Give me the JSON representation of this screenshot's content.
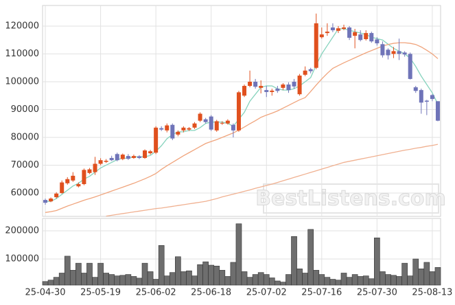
{
  "chart_data": [
    {
      "type": "candlestick",
      "watermark": "BestListens.com",
      "ylim": [
        51600,
        127400
      ],
      "yticks": [
        60000,
        70000,
        80000,
        90000,
        100000,
        110000,
        120000
      ],
      "grid": true,
      "up_color": "#e0501e",
      "down_color": "#6f74b8",
      "open": [
        57500,
        57000,
        58500,
        60000,
        63500,
        64500,
        62400,
        63200,
        67200,
        67500,
        70500,
        71200,
        72600,
        74000,
        72200,
        73300,
        72600,
        73200,
        72600,
        74300,
        74500,
        83300,
        82500,
        84500,
        81000,
        82500,
        82800,
        83500,
        86000,
        86500,
        87500,
        82500,
        85000,
        85000,
        84500,
        82500,
        95000,
        98500,
        100000,
        97800,
        97000,
        96300,
        97500,
        97800,
        99000,
        100000,
        95500,
        102500,
        104500,
        105000,
        116000,
        117500,
        119500,
        118300,
        119000,
        119500,
        116500,
        117000,
        115300,
        117500,
        115200,
        113500,
        111500,
        110000,
        111000,
        110500,
        110000,
        98000,
        97000,
        93200,
        95200,
        93000
      ],
      "high": [
        58000,
        58400,
        60300,
        64500,
        65700,
        67500,
        63800,
        68800,
        69000,
        73000,
        72500,
        72200,
        73400,
        74500,
        74200,
        74000,
        73800,
        73600,
        75700,
        75500,
        84000,
        84000,
        85000,
        85000,
        82500,
        84000,
        83700,
        85500,
        89000,
        87000,
        88000,
        86300,
        85800,
        86500,
        85000,
        96700,
        99000,
        104000,
        101000,
        100500,
        98500,
        97500,
        98500,
        99500,
        99800,
        101000,
        102800,
        105500,
        105000,
        124500,
        119500,
        121000,
        121000,
        120000,
        120500,
        120000,
        119000,
        118500,
        118500,
        118000,
        116000,
        114500,
        112000,
        112500,
        115500,
        111000,
        110500,
        98500,
        97500,
        93500,
        95500,
        93000
      ],
      "low": [
        55800,
        56700,
        58000,
        59700,
        63000,
        64000,
        62000,
        62800,
        66800,
        66500,
        70000,
        70800,
        71500,
        71400,
        71800,
        71900,
        72300,
        72200,
        72300,
        73800,
        74000,
        82300,
        81800,
        79000,
        80400,
        81800,
        82300,
        83000,
        85500,
        85000,
        82300,
        82000,
        84500,
        84600,
        80000,
        82000,
        94500,
        98000,
        97500,
        95800,
        94500,
        95000,
        96000,
        97000,
        96000,
        97500,
        95000,
        102000,
        103000,
        104500,
        115500,
        116500,
        117800,
        117500,
        118500,
        115000,
        112000,
        114500,
        114800,
        114000,
        113000,
        108700,
        108000,
        108500,
        107800,
        109000,
        100800,
        96000,
        88500,
        88000,
        93000,
        85800
      ],
      "close": [
        56500,
        58000,
        59800,
        63800,
        65000,
        66200,
        63200,
        68300,
        68500,
        70500,
        71800,
        71600,
        71800,
        71800,
        73800,
        72300,
        73300,
        72600,
        75300,
        75000,
        83500,
        82800,
        84300,
        79600,
        82000,
        83500,
        83300,
        85000,
        88500,
        85500,
        82800,
        85800,
        85200,
        86000,
        82500,
        96200,
        98500,
        100000,
        98200,
        98500,
        96300,
        96800,
        96700,
        99000,
        97000,
        98300,
        102200,
        104000,
        103800,
        121000,
        117000,
        118000,
        118500,
        119200,
        119500,
        115800,
        117800,
        115000,
        117500,
        114500,
        113800,
        109500,
        109500,
        111000,
        110000,
        109800,
        101000,
        96700,
        92500,
        92800,
        93800,
        86000
      ],
      "lines": [
        {
          "color": "#86d3bd",
          "values": [
            57000,
            57000,
            58000,
            59500,
            61000,
            62500,
            63500,
            65000,
            66000,
            67500,
            69000,
            70000,
            71000,
            72000,
            72500,
            72500,
            73000,
            73000,
            73000,
            73500,
            75000,
            77000,
            79500,
            81000,
            82000,
            82000,
            82500,
            82500,
            83500,
            85000,
            85500,
            85500,
            85500,
            85000,
            84000,
            86500,
            89000,
            93000,
            95500,
            98000,
            98500,
            98500,
            97500,
            97000,
            97000,
            97500,
            98500,
            100000,
            101500,
            106000,
            110000,
            113000,
            116000,
            119000,
            119000,
            118500,
            118000,
            117500,
            117000,
            116000,
            115500,
            115000,
            113500,
            112000,
            111000,
            110000,
            108500,
            105500,
            102000,
            99000,
            96000,
            92000
          ]
        },
        {
          "color": "#f0a47c",
          "values": [
            53000,
            53300,
            53700,
            54500,
            55300,
            56000,
            56700,
            57400,
            58000,
            58600,
            59300,
            60000,
            60700,
            61400,
            62100,
            62800,
            63500,
            64300,
            65100,
            66000,
            67000,
            68500,
            69800,
            71000,
            72200,
            73400,
            74500,
            75600,
            76700,
            77800,
            78500,
            79200,
            80000,
            80800,
            81600,
            82600,
            83700,
            84900,
            86000,
            87200,
            88000,
            88700,
            89500,
            90500,
            91500,
            92500,
            93500,
            94300,
            96500,
            98800,
            101000,
            103000,
            104800,
            105800,
            106800,
            107700,
            108600,
            109500,
            110400,
            111200,
            112000,
            112800,
            113400,
            113800,
            114000,
            114000,
            113800,
            113400,
            112500,
            111300,
            110000,
            108300
          ]
        },
        {
          "color": "#f0b090",
          "values": [
            null,
            null,
            null,
            null,
            null,
            null,
            null,
            null,
            null,
            null,
            null,
            51700,
            52000,
            52300,
            52600,
            52900,
            53200,
            53500,
            53800,
            54100,
            54400,
            54600,
            54900,
            55200,
            55500,
            55800,
            56100,
            56400,
            56700,
            57000,
            57500,
            58000,
            58600,
            59100,
            59600,
            60100,
            60600,
            61100,
            61700,
            62200,
            62700,
            63200,
            63800,
            64400,
            65000,
            65600,
            66200,
            66800,
            67400,
            68000,
            68600,
            69200,
            69800,
            70400,
            71000,
            71400,
            71800,
            72200,
            72600,
            73000,
            73400,
            73800,
            74200,
            74600,
            75000,
            75400,
            75700,
            76100,
            76400,
            76800,
            77100,
            77500
          ]
        }
      ]
    },
    {
      "type": "bar",
      "color": "#6e6e6e",
      "ylim": [
        7300,
        243900
      ],
      "yticks": [
        100000,
        200000
      ],
      "grid": true,
      "categories": [
        "25-04-30",
        null,
        null,
        null,
        null,
        null,
        null,
        null,
        null,
        null,
        "25-05-19",
        null,
        null,
        null,
        null,
        null,
        null,
        null,
        null,
        null,
        "25-06-02",
        null,
        null,
        null,
        null,
        null,
        null,
        null,
        null,
        null,
        "25-06-18",
        null,
        null,
        null,
        null,
        null,
        null,
        null,
        null,
        null,
        "25-07-02",
        null,
        null,
        null,
        null,
        null,
        null,
        null,
        null,
        null,
        "25-07-16",
        null,
        null,
        null,
        null,
        null,
        null,
        null,
        null,
        null,
        "25-07-30",
        null,
        null,
        null,
        null,
        null,
        null,
        null,
        null,
        null,
        "25-08-13",
        null
      ],
      "values": [
        20000,
        25000,
        35000,
        50000,
        110000,
        60000,
        85000,
        50000,
        85000,
        35000,
        85000,
        50000,
        45000,
        40000,
        42000,
        45000,
        38000,
        32000,
        85000,
        55000,
        28000,
        148000,
        40000,
        52000,
        108000,
        55000,
        58000,
        40000,
        80000,
        90000,
        78000,
        75000,
        60000,
        38000,
        88000,
        225000,
        55000,
        35000,
        45000,
        52000,
        45000,
        33000,
        22000,
        18000,
        45000,
        180000,
        65000,
        50000,
        205000,
        60000,
        45000,
        35000,
        28000,
        25000,
        50000,
        35000,
        45000,
        38000,
        40000,
        30000,
        175000,
        55000,
        45000,
        42000,
        38000,
        85000,
        40000,
        100000,
        65000,
        88000,
        55000,
        70000
      ]
    }
  ]
}
